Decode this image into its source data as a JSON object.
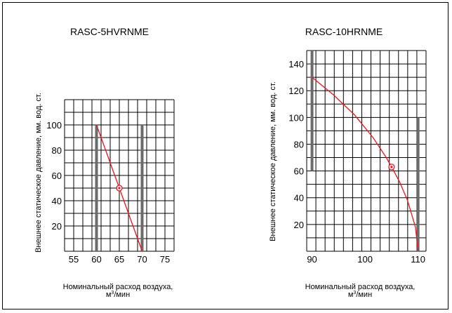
{
  "chart_data": [
    {
      "type": "line",
      "title": "RASC-5HVRNME",
      "ylabel": "Внешнее статическое давление, мм. вод. ст.",
      "xlabel_line1": "Номинальный расход воздуха,",
      "xlabel_unit_base": "м",
      "xlabel_unit_sup": "3",
      "xlabel_unit_rest": "/мин",
      "x_ticks": [
        "55",
        "60",
        "65",
        "70",
        "75"
      ],
      "y_ticks": [
        "20",
        "40",
        "60",
        "80",
        "100"
      ],
      "xlim": [
        53,
        77
      ],
      "ylim": [
        0,
        120
      ],
      "grid": true,
      "series": [
        {
          "x": [
            60,
            70
          ],
          "y": [
            100,
            0
          ]
        }
      ],
      "operating_point": {
        "x": 65,
        "y": 50
      },
      "limit_lines": [
        {
          "x": 60,
          "y_top": 100
        },
        {
          "x": 70,
          "y_top": 100
        }
      ],
      "curve_color": "#e8141c",
      "limit_color": "#6b6b6b"
    },
    {
      "type": "line",
      "title": "RASC-10HRNME",
      "ylabel": "Внешнее статическое давление, мм. вод. ст.",
      "xlabel_line1": "Номинальный расход воздуха,",
      "xlabel_unit_base": "м",
      "xlabel_unit_sup": "3",
      "xlabel_unit_rest": "/мин",
      "x_ticks": [
        "90",
        "100",
        "110"
      ],
      "y_ticks": [
        "20",
        "40",
        "60",
        "80",
        "100",
        "120",
        "140"
      ],
      "xlim": [
        89,
        111.5
      ],
      "ylim": [
        0,
        150
      ],
      "grid": true,
      "series": [
        {
          "x": [
            90,
            94,
            98,
            101.5,
            104,
            105,
            106.5,
            108,
            109.5,
            110
          ],
          "y": [
            130,
            117,
            102,
            85,
            70,
            63,
            52,
            38,
            18,
            0
          ]
        }
      ],
      "operating_point": {
        "x": 105,
        "y": 63
      },
      "limit_lines": [
        {
          "x": 90,
          "y_top": 150,
          "y_bottom": 60
        },
        {
          "x": 110,
          "y_top": 100
        }
      ],
      "curve_color": "#e8141c",
      "limit_color": "#6b6b6b"
    }
  ]
}
